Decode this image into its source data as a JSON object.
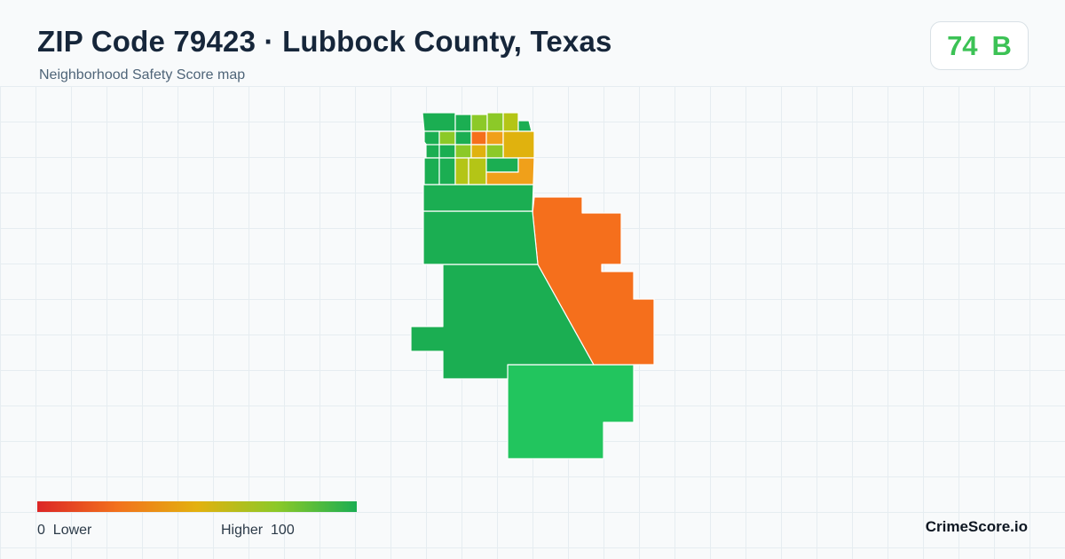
{
  "header": {
    "title": "ZIP Code 79423 · Lubbock County, Texas",
    "subtitle": "Neighborhood Safety Score map"
  },
  "score": {
    "value": "74",
    "grade": "B",
    "color": "#3cc255"
  },
  "map": {
    "region": "ZIP Code 79423",
    "palette": {
      "dark_green": "#1bae52",
      "green": "#22c55e",
      "light_green": "#8cc928",
      "yellow_green": "#b4c516",
      "yellow": "#e0b20e",
      "amber": "#f0a01a",
      "orange": "#f56f1c"
    }
  },
  "legend": {
    "low_value": "0",
    "low_label": "Lower",
    "high_label": "Higher",
    "high_value": "100",
    "gradient": [
      "#dc2626",
      "#f2711c",
      "#e3b10f",
      "#8cc928",
      "#1bae52"
    ]
  },
  "brand": {
    "name": "CrimeScore.io"
  }
}
